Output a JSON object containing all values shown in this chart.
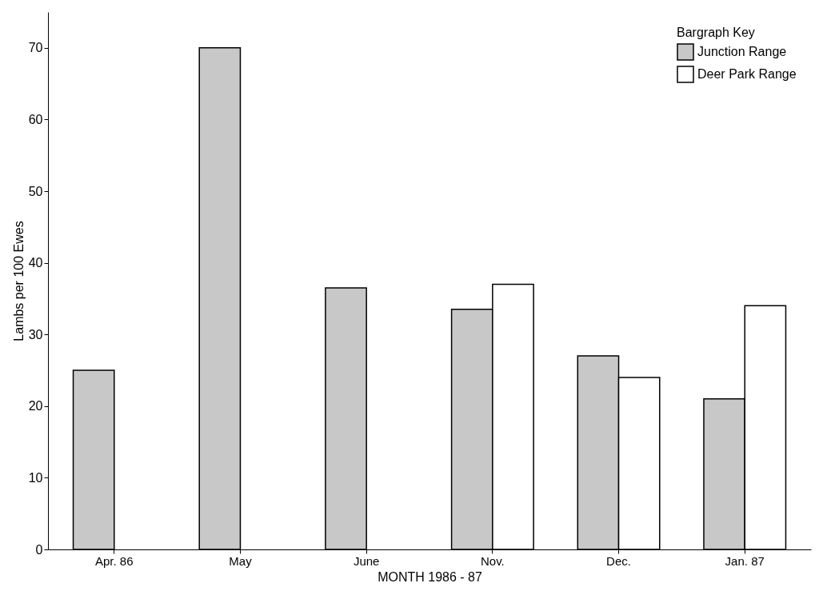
{
  "chart_data": {
    "type": "bar",
    "xlabel": "MONTH  1986 - 87",
    "ylabel": "Lambs per 100 Ewes",
    "legend_title": "Bargraph Key",
    "legend": "top right",
    "categories": [
      "Apr. 86",
      "May",
      "June",
      "Nov.",
      "Dec.",
      "Jan. 87"
    ],
    "series": [
      {
        "name": "Junction Range",
        "color": "#c8c8c8",
        "values": [
          25,
          70,
          36.5,
          33.5,
          27,
          21
        ]
      },
      {
        "name": "Deer Park Range",
        "color": "#ffffff",
        "values": [
          null,
          null,
          null,
          37,
          24,
          34
        ]
      }
    ],
    "ylim": [
      0,
      75
    ],
    "yticks": [
      0,
      10,
      20,
      30,
      40,
      50,
      60,
      70
    ],
    "grid": false
  }
}
